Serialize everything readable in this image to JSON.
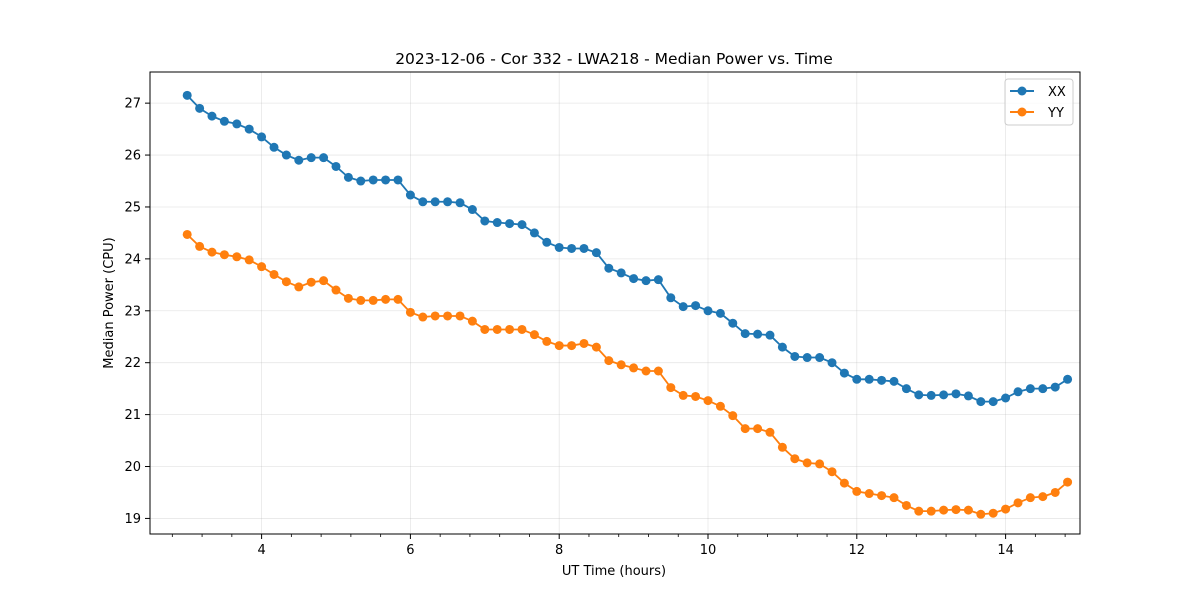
{
  "chart_data": {
    "type": "line",
    "title": "2023-12-06 - Cor 332 - LWA218 - Median Power vs. Time",
    "xlabel": "UT Time (hours)",
    "ylabel": "Median Power (CPU)",
    "xlim": [
      2.5,
      15.0
    ],
    "ylim": [
      18.7,
      27.6
    ],
    "xticks": [
      4,
      6,
      8,
      10,
      12,
      14
    ],
    "xtick_labels": [
      "4",
      "6",
      "8",
      "10",
      "12",
      "14"
    ],
    "yticks": [
      19,
      20,
      21,
      22,
      23,
      24,
      25,
      26,
      27
    ],
    "ytick_labels": [
      "19",
      "20",
      "21",
      "22",
      "23",
      "24",
      "25",
      "26",
      "27"
    ],
    "grid": true,
    "legend_position": "top-right",
    "x": [
      3.0,
      3.167,
      3.333,
      3.5,
      3.667,
      3.833,
      4.0,
      4.167,
      4.333,
      4.5,
      4.667,
      4.833,
      5.0,
      5.167,
      5.333,
      5.5,
      5.667,
      5.833,
      6.0,
      6.167,
      6.333,
      6.5,
      6.667,
      6.833,
      7.0,
      7.167,
      7.333,
      7.5,
      7.667,
      7.833,
      8.0,
      8.167,
      8.333,
      8.5,
      8.667,
      8.833,
      9.0,
      9.167,
      9.333,
      9.5,
      9.667,
      9.833,
      10.0,
      10.167,
      10.333,
      10.5,
      10.667,
      10.833,
      11.0,
      11.167,
      11.333,
      11.5,
      11.667,
      11.833,
      12.0,
      12.167,
      12.333,
      12.5,
      12.667,
      12.833,
      13.0,
      13.167,
      13.333,
      13.5,
      13.667,
      13.833,
      14.0,
      14.167,
      14.333,
      14.5,
      14.667,
      14.833
    ],
    "series": [
      {
        "name": "XX",
        "color": "#1f77b4",
        "values": [
          27.15,
          26.9,
          26.75,
          26.65,
          26.6,
          26.5,
          26.35,
          26.15,
          26.0,
          25.9,
          25.95,
          25.95,
          25.78,
          25.57,
          25.5,
          25.52,
          25.52,
          25.52,
          25.23,
          25.1,
          25.1,
          25.1,
          25.08,
          24.95,
          24.73,
          24.7,
          24.68,
          24.66,
          24.5,
          24.32,
          24.22,
          24.2,
          24.2,
          24.12,
          23.82,
          23.73,
          23.62,
          23.58,
          23.6,
          23.25,
          23.08,
          23.1,
          23.0,
          22.95,
          22.76,
          22.56,
          22.55,
          22.53,
          22.3,
          22.12,
          22.1,
          22.1,
          22.0,
          21.8,
          21.68,
          21.68,
          21.66,
          21.64,
          21.5,
          21.38,
          21.37,
          21.38,
          21.4,
          21.36,
          21.25,
          21.25,
          21.32,
          21.44,
          21.5,
          21.5,
          21.53,
          21.68
        ]
      },
      {
        "name": "YY",
        "color": "#ff7f0e",
        "values": [
          24.47,
          24.24,
          24.13,
          24.08,
          24.04,
          23.98,
          23.85,
          23.7,
          23.56,
          23.46,
          23.55,
          23.58,
          23.4,
          23.24,
          23.2,
          23.2,
          23.22,
          23.22,
          22.97,
          22.88,
          22.9,
          22.9,
          22.9,
          22.8,
          22.64,
          22.64,
          22.64,
          22.64,
          22.54,
          22.41,
          22.33,
          22.33,
          22.37,
          22.3,
          22.04,
          21.96,
          21.9,
          21.84,
          21.84,
          21.52,
          21.37,
          21.35,
          21.27,
          21.16,
          20.98,
          20.73,
          20.73,
          20.66,
          20.37,
          20.15,
          20.07,
          20.05,
          19.9,
          19.68,
          19.52,
          19.48,
          19.44,
          19.4,
          19.25,
          19.14,
          19.14,
          19.16,
          19.17,
          19.16,
          19.08,
          19.1,
          19.18,
          19.3,
          19.4,
          19.42,
          19.5,
          19.7
        ]
      }
    ]
  }
}
